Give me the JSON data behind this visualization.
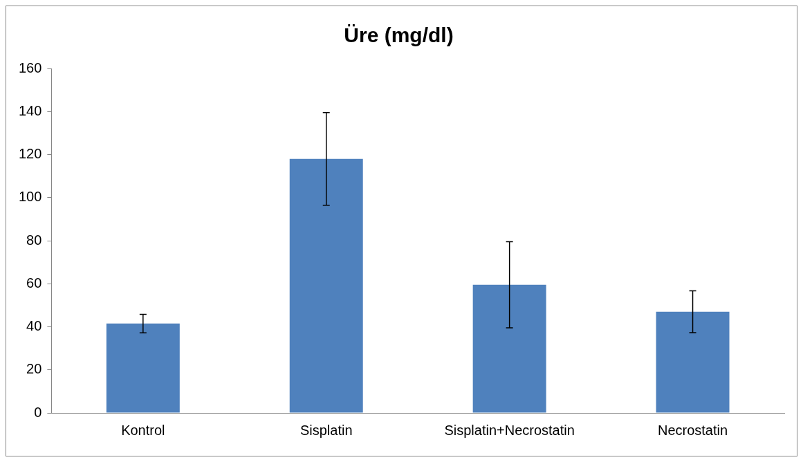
{
  "chart_data": {
    "type": "bar",
    "title": "Üre (mg/dl)",
    "categories": [
      "Kontrol",
      "Sisplatin",
      "Sisplatin+Necrostatin",
      "Necrostatin"
    ],
    "values": [
      41.5,
      118,
      59.5,
      47
    ],
    "errors": [
      4.3,
      21.5,
      20,
      9.7
    ],
    "color": "#4f81bd",
    "ylim": [
      0,
      160
    ],
    "yticks": [
      0,
      20,
      40,
      60,
      80,
      100,
      120,
      140,
      160
    ],
    "grid": false,
    "legend": false
  }
}
